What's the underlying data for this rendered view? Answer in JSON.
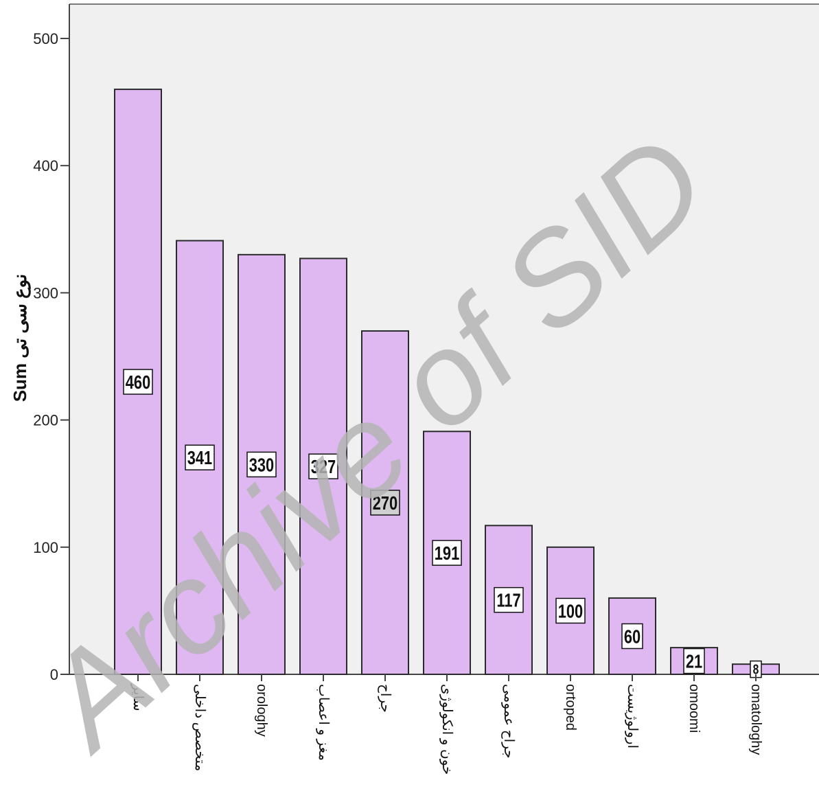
{
  "chart_data": {
    "type": "bar",
    "categories": [
      "سایر",
      "متخصص داخلی",
      "orologhy",
      "مغز و اعصاب",
      "جراح",
      "خون و انکولوژی",
      "جراح عمومی",
      "ortoped",
      "ارولوژیست",
      "omoomi",
      "omatologhy"
    ],
    "values": [
      460,
      341,
      330,
      327,
      270,
      191,
      117,
      100,
      60,
      21,
      8
    ],
    "value_labels": [
      "460",
      "341",
      "330",
      "327",
      "270",
      "191",
      "117",
      "100",
      "60",
      "21",
      "8"
    ],
    "ylabel": "Sum نوع سی تی",
    "xlabel": "",
    "ylim": [
      0,
      525
    ],
    "yticks": [
      0,
      100,
      200,
      300,
      400,
      500
    ],
    "ytick_labels": [
      "0",
      "100",
      "200",
      "300",
      "400",
      "500"
    ],
    "grid": false,
    "legend": "none"
  },
  "watermark": {
    "text": "Archive of SID"
  },
  "colors": {
    "plot_background": "#f0f0f0",
    "bar_fill": "#dfb8f2",
    "bar_stroke": "#2a2a2a",
    "axis": "#444444",
    "label_box": "#ffffff",
    "label_box_highlight": "#cfcfcf",
    "watermark": "#b4b4b4"
  }
}
